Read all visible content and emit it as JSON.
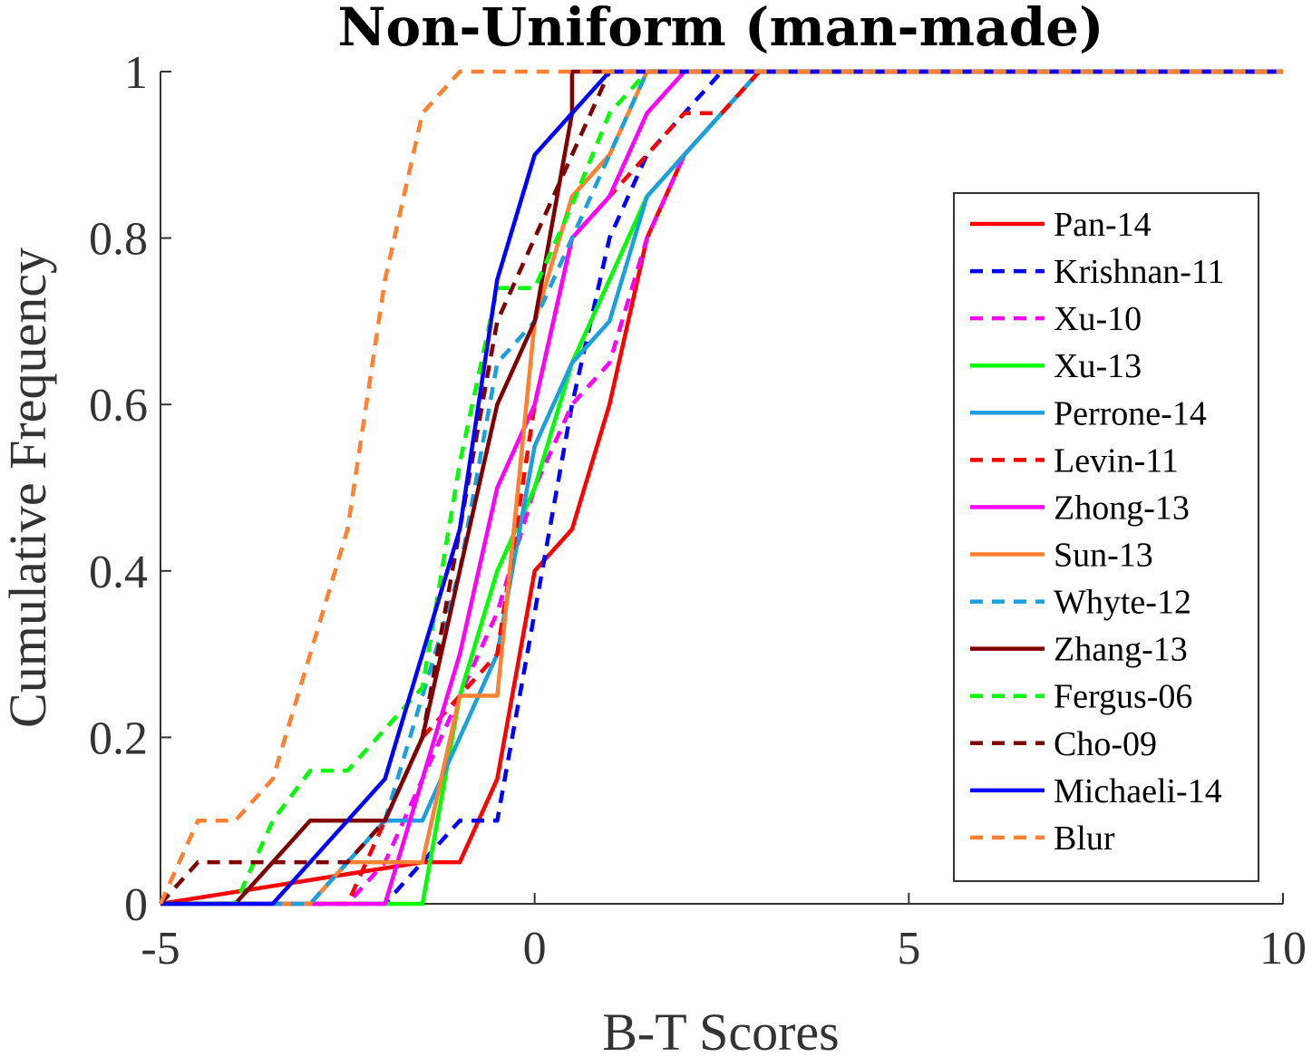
{
  "chart_data": {
    "type": "line",
    "title": "Non-Uniform (man-made)",
    "xlabel": "B-T Scores",
    "ylabel": "Cumulative Frequency",
    "xlim": [
      -5,
      10
    ],
    "ylim": [
      0,
      1
    ],
    "xticks": [
      -5,
      0,
      5,
      10
    ],
    "xtick_labels": [
      "-5",
      "0",
      "5",
      "10"
    ],
    "yticks": [
      0,
      0.2,
      0.4,
      0.6,
      0.8,
      1
    ],
    "ytick_labels": [
      "0",
      "0.2",
      "0.4",
      "0.6",
      "0.8",
      "1"
    ],
    "grid": false,
    "legend_position": "right",
    "series": [
      {
        "name": "Pan-14",
        "color": "#ff0000",
        "dash": false,
        "x": [
          -5,
          -1.5,
          -1,
          -0.5,
          0,
          0.5,
          1,
          1.5,
          2,
          2.5,
          3,
          10
        ],
        "y": [
          0,
          0.05,
          0.05,
          0.15,
          0.4,
          0.45,
          0.6,
          0.8,
          0.9,
          0.95,
          1,
          1
        ]
      },
      {
        "name": "Krishnan-11",
        "color": "#0000ff",
        "dash": true,
        "x": [
          -5,
          -2,
          -1,
          -0.5,
          0,
          0.5,
          1,
          1.5,
          2,
          2.5,
          3,
          10
        ],
        "y": [
          0,
          0,
          0.1,
          0.1,
          0.35,
          0.6,
          0.8,
          0.9,
          0.95,
          1,
          1,
          1
        ]
      },
      {
        "name": "Xu-10",
        "color": "#ff00ff",
        "dash": true,
        "x": [
          -5,
          -2.5,
          -2,
          -1.5,
          -1,
          -0.5,
          0,
          0.5,
          1,
          1.5,
          2,
          2.5,
          3,
          10
        ],
        "y": [
          0,
          0,
          0.05,
          0.15,
          0.25,
          0.35,
          0.5,
          0.6,
          0.65,
          0.8,
          0.9,
          0.95,
          1,
          1
        ]
      },
      {
        "name": "Xu-13",
        "color": "#00ff00",
        "dash": false,
        "x": [
          -5,
          -1.5,
          -1,
          -0.5,
          0,
          0.5,
          1,
          1.5,
          2,
          3,
          10
        ],
        "y": [
          0,
          0,
          0.25,
          0.4,
          0.5,
          0.65,
          0.75,
          0.85,
          0.9,
          1,
          1
        ]
      },
      {
        "name": "Perrone-14",
        "color": "#1a9fdf",
        "dash": false,
        "x": [
          -5,
          -3,
          -2.5,
          -2,
          -1.5,
          -1,
          -0.5,
          0,
          0.5,
          1,
          1.5,
          2,
          2.5,
          3,
          10
        ],
        "y": [
          0,
          0,
          0.05,
          0.1,
          0.1,
          0.2,
          0.3,
          0.55,
          0.65,
          0.7,
          0.85,
          0.9,
          0.95,
          1,
          1
        ]
      },
      {
        "name": "Levin-11",
        "color": "#ff0000",
        "dash": true,
        "x": [
          -5,
          -2.5,
          -2,
          -1.5,
          -1,
          -0.5,
          0,
          0.5,
          1,
          1.5,
          2,
          2.5,
          3,
          10
        ],
        "y": [
          0,
          0,
          0.1,
          0.2,
          0.25,
          0.3,
          0.6,
          0.8,
          0.85,
          0.9,
          0.95,
          0.95,
          1,
          1
        ]
      },
      {
        "name": "Zhong-13",
        "color": "#ff00ff",
        "dash": false,
        "x": [
          -5,
          -2,
          -1.5,
          -1,
          -0.5,
          0,
          0.5,
          1,
          1.5,
          2,
          10
        ],
        "y": [
          0,
          0,
          0.15,
          0.3,
          0.5,
          0.6,
          0.8,
          0.85,
          0.95,
          1,
          1
        ]
      },
      {
        "name": "Sun-13",
        "color": "#ff8030",
        "dash": false,
        "x": [
          -5,
          -3,
          -2.5,
          -1.5,
          -1,
          -0.5,
          0,
          0.5,
          1,
          1.5,
          10
        ],
        "y": [
          0,
          0,
          0.05,
          0.05,
          0.25,
          0.25,
          0.7,
          0.85,
          0.9,
          1,
          1
        ]
      },
      {
        "name": "Whyte-12",
        "color": "#1a9fdf",
        "dash": true,
        "x": [
          -5,
          -3,
          -2.5,
          -2,
          -1.5,
          -1,
          -0.5,
          0,
          0.5,
          1,
          1.5,
          10
        ],
        "y": [
          0,
          0,
          0.05,
          0.1,
          0.25,
          0.4,
          0.65,
          0.7,
          0.8,
          0.9,
          1,
          1
        ]
      },
      {
        "name": "Zhang-13",
        "color": "#800000",
        "dash": false,
        "x": [
          -5,
          -4,
          -3,
          -2,
          -1.5,
          -1,
          -0.5,
          0,
          0.5,
          0.5,
          10
        ],
        "y": [
          0,
          0,
          0.1,
          0.1,
          0.2,
          0.4,
          0.6,
          0.7,
          0.95,
          1,
          1
        ]
      },
      {
        "name": "Fergus-06",
        "color": "#00ff00",
        "dash": true,
        "x": [
          -5,
          -4,
          -3.5,
          -3,
          -2.5,
          -2,
          -1.5,
          -1,
          -0.5,
          0,
          0.5,
          1,
          1.5,
          10
        ],
        "y": [
          0,
          0,
          0.1,
          0.16,
          0.16,
          0.21,
          0.26,
          0.53,
          0.74,
          0.74,
          0.84,
          0.95,
          1,
          1
        ]
      },
      {
        "name": "Cho-09",
        "color": "#800000",
        "dash": true,
        "x": [
          -5,
          -4.5,
          -2.5,
          -2,
          -1.5,
          -1,
          -0.5,
          0,
          0.5,
          1,
          10
        ],
        "y": [
          0,
          0.05,
          0.05,
          0.1,
          0.2,
          0.45,
          0.7,
          0.8,
          0.9,
          1,
          1
        ]
      },
      {
        "name": "Michaeli-14",
        "color": "#0000ff",
        "dash": false,
        "x": [
          -5,
          -3.5,
          -2,
          -1,
          -0.5,
          0,
          0.5,
          1,
          10
        ],
        "y": [
          0,
          0,
          0.15,
          0.45,
          0.75,
          0.9,
          0.95,
          1,
          1
        ]
      },
      {
        "name": "Blur",
        "color": "#ff8030",
        "dash": true,
        "x": [
          -5,
          -4.5,
          -4,
          -3.5,
          -3,
          -2.5,
          -2,
          -1.5,
          -1,
          -0.5,
          10
        ],
        "y": [
          0,
          0.1,
          0.1,
          0.15,
          0.3,
          0.45,
          0.75,
          0.95,
          1,
          1,
          1
        ]
      }
    ]
  }
}
